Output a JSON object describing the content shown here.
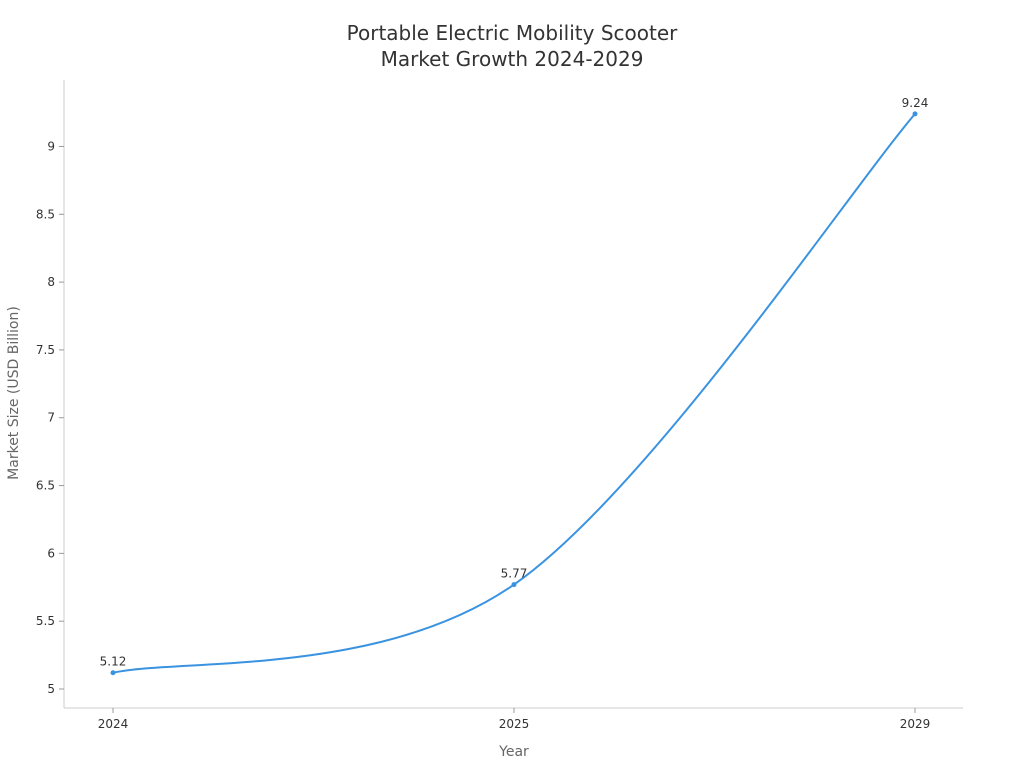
{
  "chart_data": {
    "type": "line",
    "title_lines": [
      "Portable Electric Mobility Scooter",
      "Market Growth 2024-2029"
    ],
    "xlabel": "Year",
    "ylabel": "Market Size (USD Billion)",
    "categories": [
      "2024",
      "2025",
      "2029"
    ],
    "series": [
      {
        "values": [
          5.12,
          5.77,
          9.24
        ],
        "color": "#3a93e0"
      }
    ],
    "data_labels": [
      "5.12",
      "5.77",
      "9.24"
    ],
    "yticks": [
      5,
      5.5,
      6,
      6.5,
      7,
      7.5,
      8,
      8.5,
      9
    ],
    "ytick_labels": [
      "5",
      "5.5",
      "6",
      "6.5",
      "7",
      "7.5",
      "8",
      "8.5",
      "9"
    ],
    "ylim": [
      4.86,
      9.49
    ],
    "grid": false,
    "legend": "none"
  }
}
